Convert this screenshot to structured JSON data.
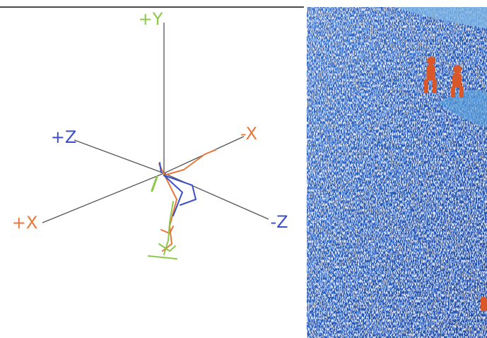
{
  "axes": {
    "y_pos": "+Y",
    "z_pos": "+Z",
    "x_neg": "-X",
    "x_pos": "+X",
    "z_neg": "-Z"
  }
}
